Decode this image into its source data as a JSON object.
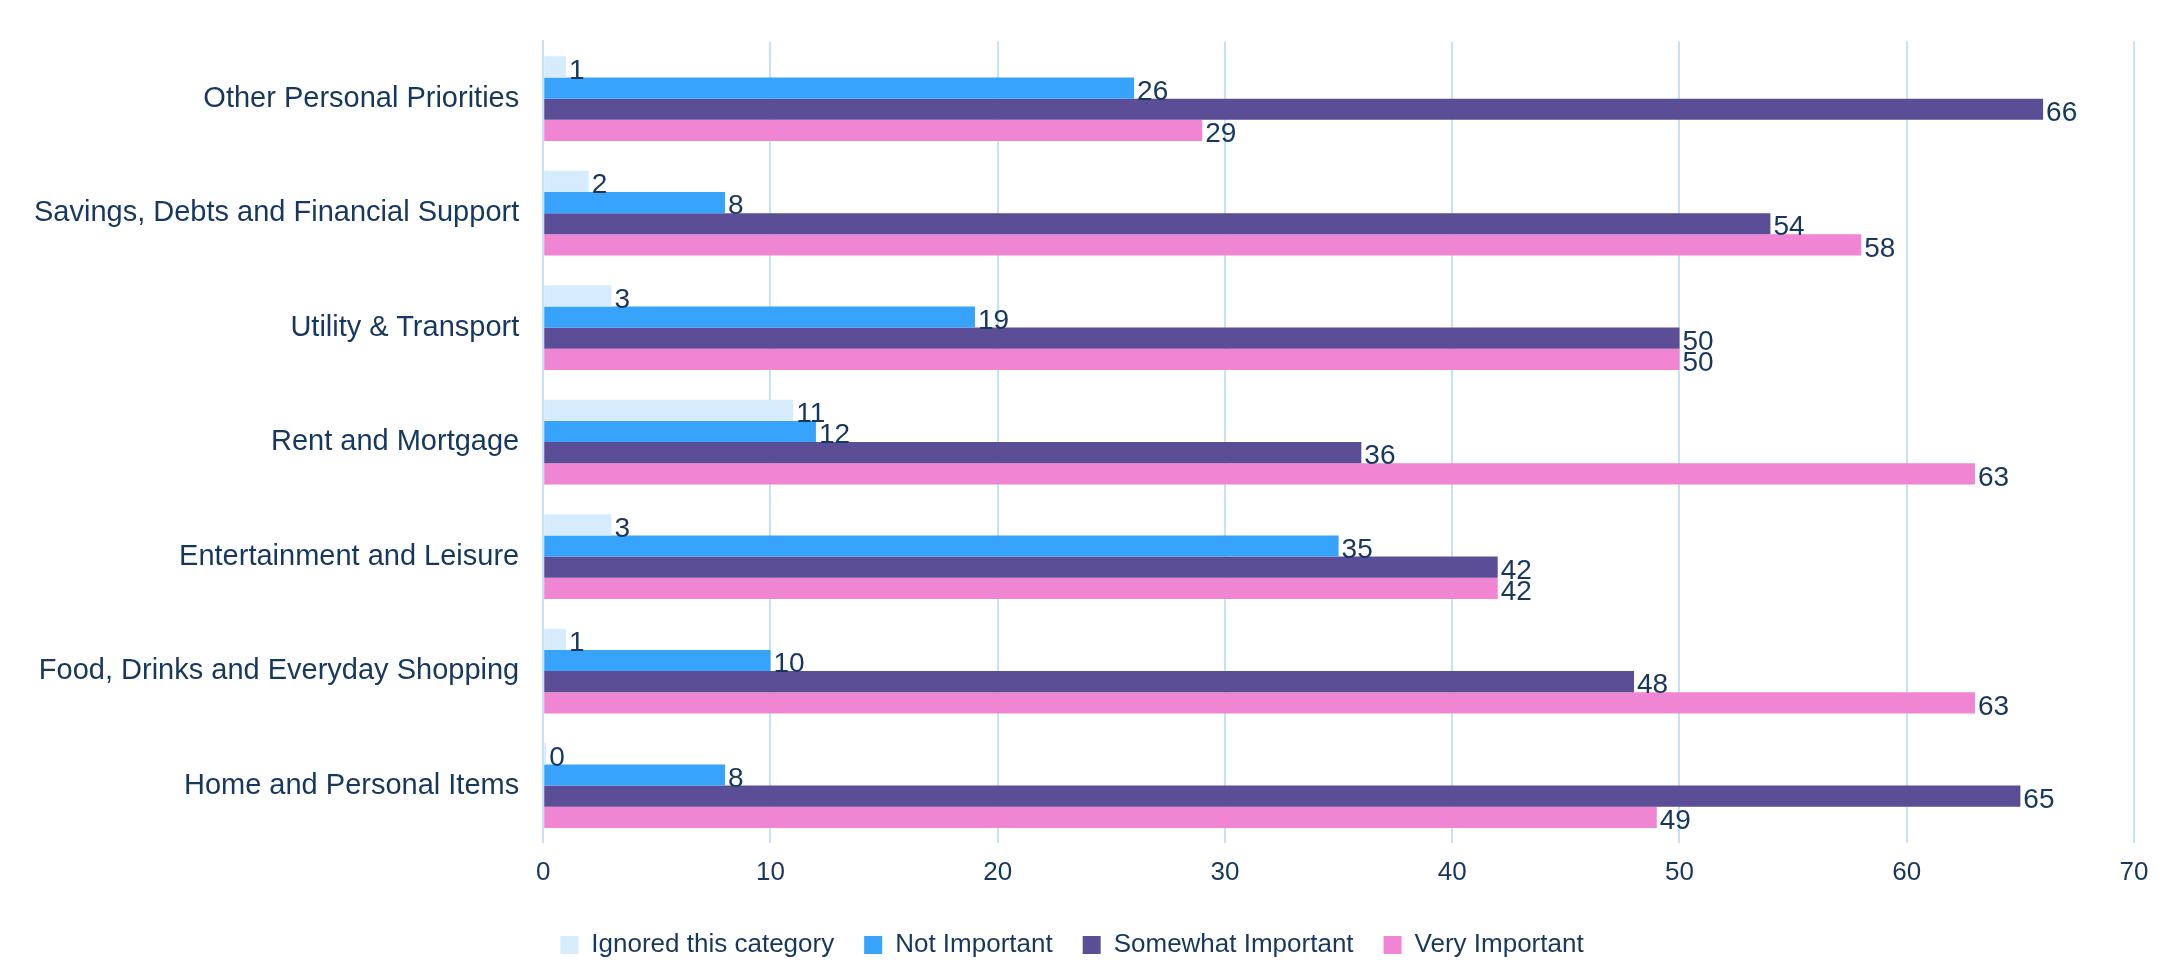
{
  "chart_data": {
    "type": "bar",
    "orientation": "horizontal",
    "categories": [
      "Other Personal Priorities",
      "Savings, Debts and Financial Support",
      "Utility & Transport",
      "Rent and Mortgage",
      "Entertainment and Leisure",
      "Food, Drinks and Everyday Shopping",
      "Home and Personal Items"
    ],
    "series": [
      {
        "name": "Ignored this category",
        "color": "#d6ebfc",
        "values": [
          1,
          2,
          3,
          11,
          3,
          1,
          0
        ]
      },
      {
        "name": "Not Important",
        "color": "#37a3fa",
        "values": [
          26,
          8,
          19,
          12,
          35,
          10,
          8
        ]
      },
      {
        "name": "Somewhat Important",
        "color": "#5b4e96",
        "values": [
          66,
          54,
          50,
          36,
          42,
          48,
          65
        ]
      },
      {
        "name": "Very Important",
        "color": "#f085d3",
        "values": [
          29,
          58,
          50,
          63,
          42,
          63,
          49
        ]
      }
    ],
    "xlim": [
      0,
      70
    ],
    "xticks": [
      0,
      10,
      20,
      30,
      40,
      50,
      60,
      70
    ],
    "grid": "x",
    "legend": "bottom",
    "data_labels": true
  }
}
